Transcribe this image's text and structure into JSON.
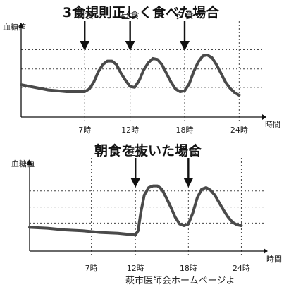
{
  "chart_data": [
    {
      "type": "line",
      "title": "3食規則正しく食べた場合",
      "ylabel": "血糖値",
      "xlabel": "時間",
      "xlim": [
        0,
        27
      ],
      "ylim": [
        0,
        100
      ],
      "xticks": [
        {
          "value": 7,
          "label": "7時"
        },
        {
          "value": 12,
          "label": "12時"
        },
        {
          "value": 18,
          "label": "18時"
        },
        {
          "value": 24,
          "label": "24時"
        }
      ],
      "reference_levels": [
        34,
        55,
        77
      ],
      "meals": [
        {
          "x": 7,
          "label": "朝食"
        },
        {
          "x": 12,
          "label": "昼食"
        },
        {
          "x": 18,
          "label": "夕食"
        }
      ],
      "grid": true,
      "series": [
        {
          "x": [
            0,
            1,
            2,
            3,
            4,
            5,
            6,
            7,
            7.5,
            8,
            8.5,
            9,
            9.5,
            10,
            10.5,
            11,
            11.5,
            12,
            12.5,
            13,
            13.5,
            14,
            14.5,
            15,
            15.5,
            16,
            16.5,
            17,
            17.5,
            18,
            18.5,
            19,
            19.5,
            20,
            20.5,
            21,
            21.5,
            22,
            22.5,
            23,
            23.5,
            24
          ],
          "y": [
            37,
            35,
            33,
            31,
            30,
            29,
            29,
            29,
            32,
            40,
            52,
            60,
            64,
            64,
            60,
            50,
            42,
            35,
            34,
            42,
            54,
            62,
            67,
            66,
            60,
            50,
            40,
            32,
            29,
            30,
            38,
            52,
            63,
            70,
            71,
            68,
            60,
            50,
            40,
            33,
            28,
            25
          ]
        }
      ]
    },
    {
      "type": "line",
      "title": "朝食を抜いた場合",
      "ylabel": "血糖値",
      "xlabel": "時間",
      "xlim": [
        0,
        27
      ],
      "ylim": [
        0,
        100
      ],
      "xticks": [
        {
          "value": 7,
          "label": "7時"
        },
        {
          "value": 12,
          "label": "12時"
        },
        {
          "value": 18,
          "label": "18時"
        },
        {
          "value": 24,
          "label": "24時"
        }
      ],
      "reference_levels": [
        33,
        52,
        71
      ],
      "meals": [
        {
          "x": 12,
          "label": "昼食"
        },
        {
          "x": 18,
          "label": "夕食"
        }
      ],
      "grid": true,
      "series": [
        {
          "x": [
            0,
            2,
            4,
            6,
            8,
            10,
            11,
            12,
            12.3,
            12.6,
            13,
            13.5,
            14,
            14.5,
            15,
            15.5,
            16,
            16.5,
            17,
            17.5,
            18,
            18.5,
            19,
            19.5,
            20,
            20.5,
            21,
            21.5,
            22,
            22.5,
            23,
            23.5,
            24
          ],
          "y": [
            28,
            27,
            25,
            24,
            22,
            21,
            20,
            19,
            24,
            45,
            66,
            75,
            77,
            77,
            73,
            63,
            52,
            40,
            32,
            30,
            32,
            45,
            63,
            73,
            75,
            72,
            66,
            57,
            48,
            40,
            34,
            31,
            30
          ]
        }
      ]
    }
  ],
  "source_note": "萩市医師会ホームページよ"
}
